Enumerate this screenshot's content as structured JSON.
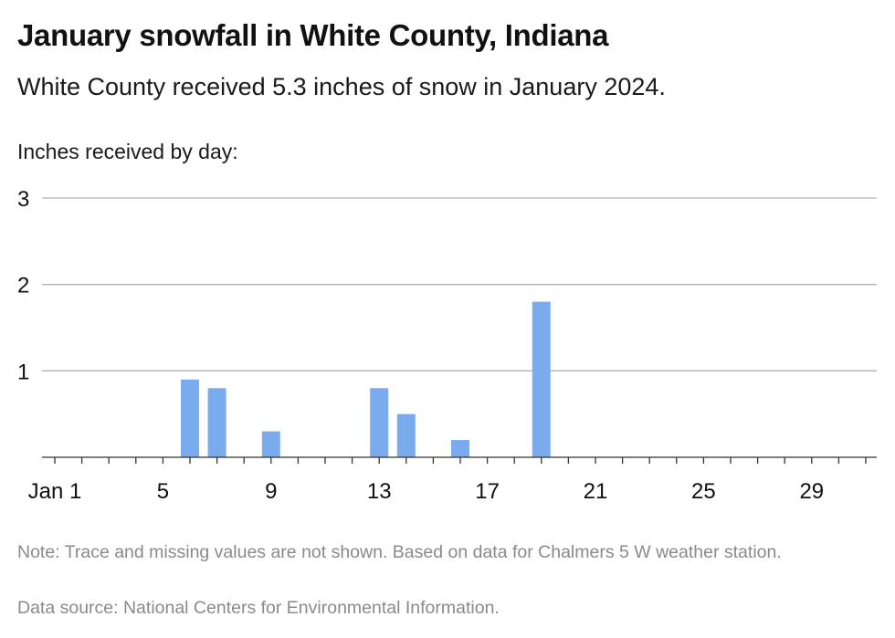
{
  "chart_data": {
    "type": "bar",
    "title": "January snowfall in White County, Indiana",
    "subtitle": "White County received 5.3 inches of snow in January 2024.",
    "ylabel": "Inches received by day:",
    "ylim": [
      0,
      3
    ],
    "yticks": [
      "1",
      "2",
      "3"
    ],
    "xlim": [
      1,
      31
    ],
    "xticks": [
      {
        "day": 1,
        "label": "Jan 1"
      },
      {
        "day": 5,
        "label": "5"
      },
      {
        "day": 9,
        "label": "9"
      },
      {
        "day": 13,
        "label": "13"
      },
      {
        "day": 17,
        "label": "17"
      },
      {
        "day": 21,
        "label": "21"
      },
      {
        "day": 25,
        "label": "25"
      },
      {
        "day": 29,
        "label": "29"
      }
    ],
    "days": [
      6,
      7,
      9,
      13,
      14,
      16,
      19
    ],
    "values": [
      0.9,
      0.8,
      0.3,
      0.8,
      0.5,
      0.2,
      1.8
    ],
    "bar_color": "#7aabed",
    "grid": true
  },
  "footer": {
    "note": "Note: Trace and missing values are not shown. Based on data for Chalmers 5 W weather station.",
    "source": "Data source: National Centers for Environmental Information."
  }
}
